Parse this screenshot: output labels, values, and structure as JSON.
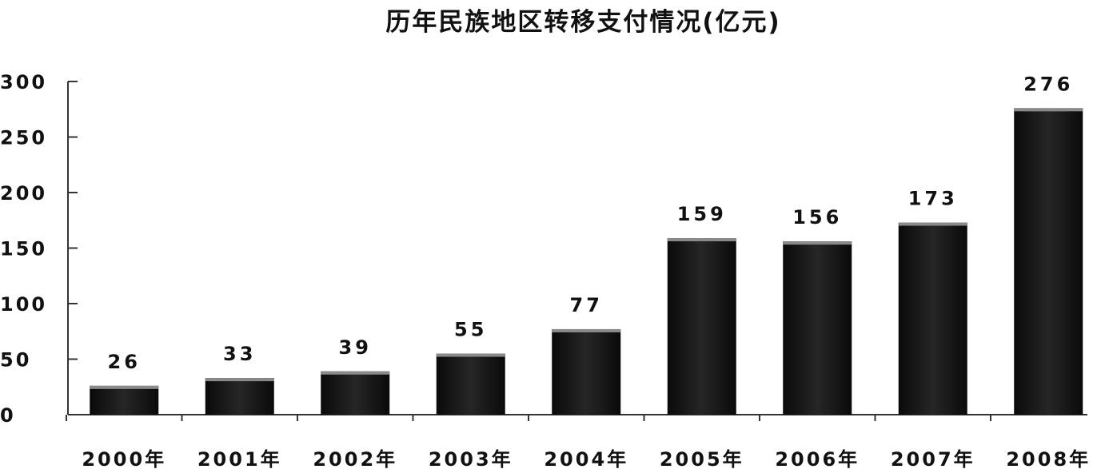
{
  "chart_data": {
    "type": "bar",
    "title": "历年民族地区转移支付情况(亿元)",
    "categories": [
      "2000年",
      "2001年",
      "2002年",
      "2003年",
      "2004年",
      "2005年",
      "2006年",
      "2007年",
      "2008年"
    ],
    "values": [
      26,
      33,
      39,
      55,
      77,
      159,
      156,
      173,
      276
    ],
    "data_labels": [
      "26",
      "33",
      "39",
      "55",
      "77",
      "159",
      "156",
      "173",
      "276"
    ],
    "y_ticks": [
      "0",
      "50",
      "100",
      "150",
      "200",
      "250",
      "300"
    ],
    "ylim": [
      0,
      300
    ],
    "xlabel": "",
    "ylabel": "",
    "grid": false,
    "legend": "none",
    "colors": {
      "bar": "#1a1a1a",
      "bar_top": "#8a8a8a",
      "axis": "#333333",
      "text": "#111111"
    }
  }
}
